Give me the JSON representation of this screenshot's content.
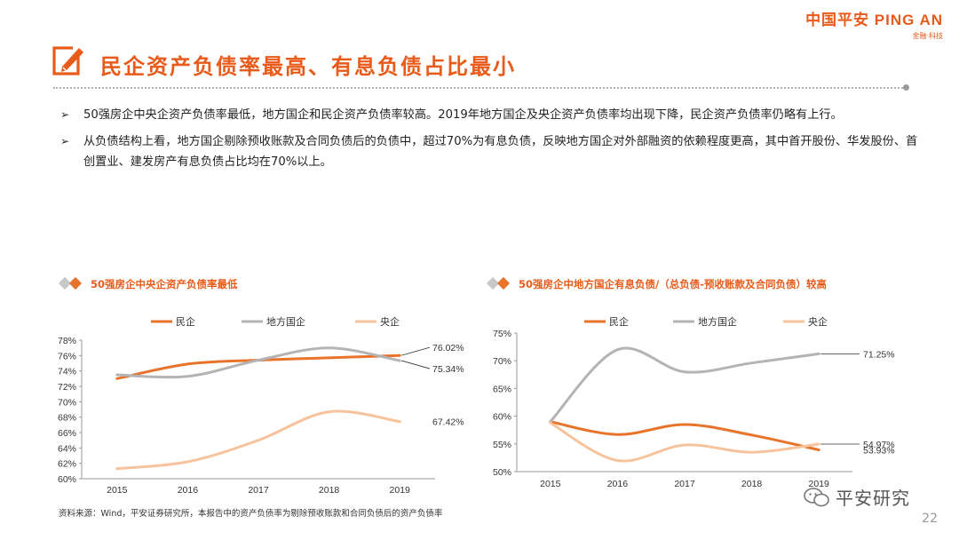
{
  "brand": {
    "name": "中国平安 PING AN",
    "tagline": "金融·科技"
  },
  "page": {
    "title": "民企资产负债率最高、有息负债占比最小",
    "bullet_mark": "➢",
    "bullets": [
      "50强房企中央企资产负债率最低，地方国企和民企资产负债率较高。2019年地方国企及央企资产负债率均出现下降，民企资产负债率仍略有上行。",
      "从负债结构上看，地方国企剔除预收账款及合同负债后的负债中，超过70%为有息负债，反映地方国企对外部融资的依赖程度更高，其中首开股份、华发股份、首创置业、建发房产有息负债占比均在70%以上。"
    ],
    "source": "资料来源：Wind，平安证券研究所，本报告中的资产负债率为剔除预收账款和合同负债后的资产负债率",
    "page_number": "22",
    "watermark": "平安研究"
  },
  "colors": {
    "accent": "#e85b1a",
    "s1": "#e8732a",
    "s2": "#b4b4b4",
    "s3": "#f7c39c"
  },
  "chart_data": [
    {
      "type": "line",
      "title": "50强房企中央企资产负债率最低",
      "x": [
        "2015",
        "2016",
        "2017",
        "2018",
        "2019"
      ],
      "ylim": [
        60,
        78
      ],
      "yticks": [
        60,
        62,
        64,
        66,
        68,
        70,
        72,
        74,
        76,
        78
      ],
      "ytick_labels": [
        "60%",
        "62%",
        "64%",
        "66%",
        "68%",
        "70%",
        "72%",
        "74%",
        "76%",
        "78%"
      ],
      "series": [
        {
          "name": "民企",
          "values": [
            73.0,
            74.9,
            75.4,
            75.7,
            76.02
          ],
          "end_label": "76.02%"
        },
        {
          "name": "地方国企",
          "values": [
            73.5,
            73.3,
            75.4,
            77.0,
            75.34
          ],
          "end_label": "75.34%"
        },
        {
          "name": "央企",
          "values": [
            61.3,
            62.2,
            65.0,
            68.7,
            67.42
          ],
          "end_label": "67.42%"
        }
      ]
    },
    {
      "type": "line",
      "title": "50强房企中地方国企有息负债/（总负债-预收账款及合同负债）较高",
      "x": [
        "2015",
        "2016",
        "2017",
        "2018",
        "2019"
      ],
      "ylim": [
        50,
        75
      ],
      "yticks": [
        50,
        55,
        60,
        65,
        70,
        75
      ],
      "ytick_labels": [
        "50%",
        "55%",
        "60%",
        "65%",
        "70%",
        "75%"
      ],
      "series": [
        {
          "name": "民企",
          "values": [
            59.0,
            56.7,
            58.5,
            56.6,
            53.93
          ],
          "end_label": "53.93%"
        },
        {
          "name": "地方国企",
          "values": [
            59.0,
            72.0,
            68.0,
            69.6,
            71.25
          ],
          "end_label": "71.25%"
        },
        {
          "name": "央企",
          "values": [
            58.8,
            52.0,
            54.8,
            53.5,
            54.97
          ],
          "end_label": "54.97%"
        }
      ]
    }
  ]
}
